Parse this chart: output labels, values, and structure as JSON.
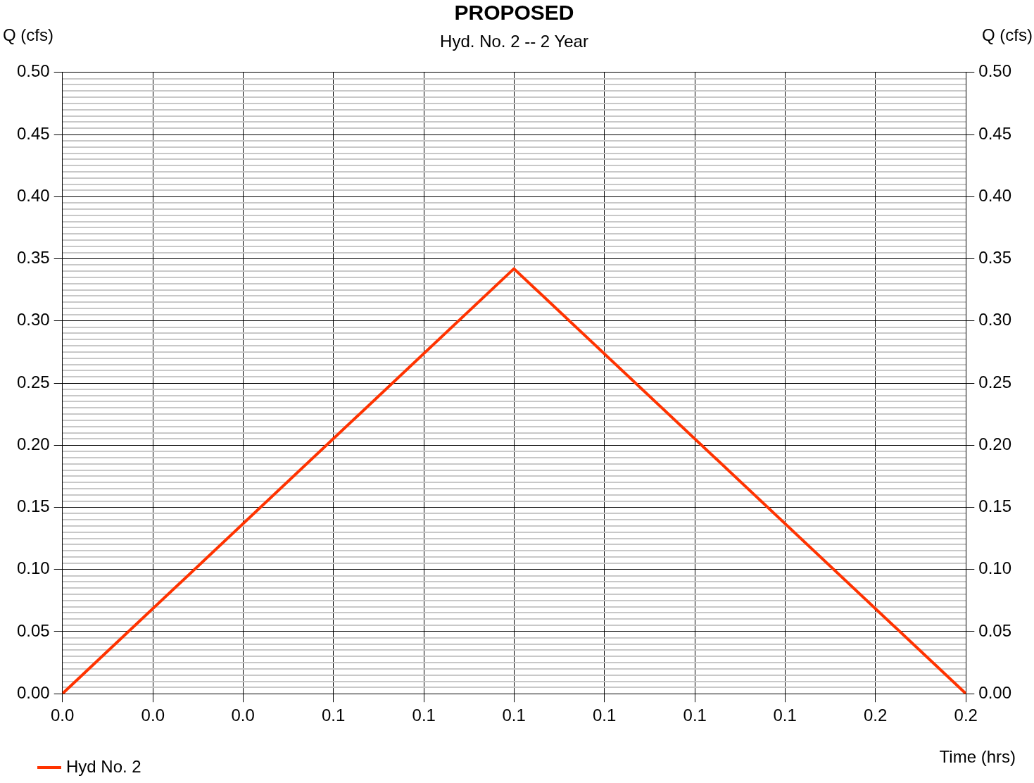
{
  "chart_data": {
    "type": "line",
    "title": "PROPOSED",
    "subtitle": "Hyd. No. 2 -- 2 Year",
    "xlabel": "Time (hrs)",
    "ylabel": "Q (cfs)",
    "y2label": "Q (cfs)",
    "x": [
      0,
      0.0833,
      0.1667
    ],
    "series": [
      {
        "name": "Hyd No. 2",
        "color": "#ff3300",
        "values": [
          0,
          0.342,
          0
        ]
      }
    ],
    "xlim": [
      0,
      0.1667
    ],
    "xticks": [
      {
        "value": 0,
        "label": "0.0"
      },
      {
        "value": 0.0167,
        "label": "0.0"
      },
      {
        "value": 0.0333,
        "label": "0.0"
      },
      {
        "value": 0.05,
        "label": "0.1"
      },
      {
        "value": 0.0667,
        "label": "0.1"
      },
      {
        "value": 0.0833,
        "label": "0.1"
      },
      {
        "value": 0.1,
        "label": "0.1"
      },
      {
        "value": 0.1167,
        "label": "0.1"
      },
      {
        "value": 0.1333,
        "label": "0.1"
      },
      {
        "value": 0.15,
        "label": "0.2"
      },
      {
        "value": 0.1667,
        "label": "0.2"
      }
    ],
    "ylim": [
      0,
      0.5
    ],
    "yticks": [
      {
        "value": 0,
        "label": "0.00"
      },
      {
        "value": 0.05,
        "label": "0.05"
      },
      {
        "value": 0.1,
        "label": "0.10"
      },
      {
        "value": 0.15,
        "label": "0.15"
      },
      {
        "value": 0.2,
        "label": "0.20"
      },
      {
        "value": 0.25,
        "label": "0.25"
      },
      {
        "value": 0.3,
        "label": "0.30"
      },
      {
        "value": 0.35,
        "label": "0.35"
      },
      {
        "value": 0.4,
        "label": "0.40"
      },
      {
        "value": 0.45,
        "label": "0.45"
      },
      {
        "value": 0.5,
        "label": "0.50"
      },
      {
        "value": 0.005,
        "label": null
      },
      {
        "value": 0.01,
        "label": null
      },
      {
        "value": 0.015,
        "label": null
      },
      {
        "value": 0.02,
        "label": null
      },
      {
        "value": 0.025,
        "label": null
      },
      {
        "value": 0.03,
        "label": null
      },
      {
        "value": 0.035,
        "label": null
      },
      {
        "value": 0.04,
        "label": null
      },
      {
        "value": 0.045,
        "label": null
      },
      {
        "value": 0.055,
        "label": null
      },
      {
        "value": 0.06,
        "label": null
      },
      {
        "value": 0.065,
        "label": null
      },
      {
        "value": 0.07,
        "label": null
      },
      {
        "value": 0.075,
        "label": null
      },
      {
        "value": 0.08,
        "label": null
      },
      {
        "value": 0.085,
        "label": null
      },
      {
        "value": 0.09,
        "label": null
      },
      {
        "value": 0.095,
        "label": null
      },
      {
        "value": 0.105,
        "label": null
      },
      {
        "value": 0.11,
        "label": null
      },
      {
        "value": 0.115,
        "label": null
      },
      {
        "value": 0.12,
        "label": null
      },
      {
        "value": 0.125,
        "label": null
      },
      {
        "value": 0.13,
        "label": null
      },
      {
        "value": 0.135,
        "label": null
      },
      {
        "value": 0.14,
        "label": null
      },
      {
        "value": 0.145,
        "label": null
      },
      {
        "value": 0.155,
        "label": null
      },
      {
        "value": 0.16,
        "label": null
      },
      {
        "value": 0.165,
        "label": null
      },
      {
        "value": 0.17,
        "label": null
      },
      {
        "value": 0.175,
        "label": null
      },
      {
        "value": 0.18,
        "label": null
      },
      {
        "value": 0.185,
        "label": null
      },
      {
        "value": 0.19,
        "label": null
      },
      {
        "value": 0.195,
        "label": null
      },
      {
        "value": 0.205,
        "label": null
      },
      {
        "value": 0.21,
        "label": null
      },
      {
        "value": 0.215,
        "label": null
      },
      {
        "value": 0.22,
        "label": null
      },
      {
        "value": 0.225,
        "label": null
      },
      {
        "value": 0.23,
        "label": null
      },
      {
        "value": 0.235,
        "label": null
      },
      {
        "value": 0.24,
        "label": null
      },
      {
        "value": 0.245,
        "label": null
      },
      {
        "value": 0.255,
        "label": null
      },
      {
        "value": 0.26,
        "label": null
      },
      {
        "value": 0.265,
        "label": null
      },
      {
        "value": 0.27,
        "label": null
      },
      {
        "value": 0.275,
        "label": null
      },
      {
        "value": 0.28,
        "label": null
      },
      {
        "value": 0.285,
        "label": null
      },
      {
        "value": 0.29,
        "label": null
      },
      {
        "value": 0.295,
        "label": null
      },
      {
        "value": 0.305,
        "label": null
      },
      {
        "value": 0.31,
        "label": null
      },
      {
        "value": 0.315,
        "label": null
      },
      {
        "value": 0.32,
        "label": null
      },
      {
        "value": 0.325,
        "label": null
      },
      {
        "value": 0.33,
        "label": null
      },
      {
        "value": 0.335,
        "label": null
      },
      {
        "value": 0.34,
        "label": null
      },
      {
        "value": 0.345,
        "label": null
      },
      {
        "value": 0.355,
        "label": null
      },
      {
        "value": 0.36,
        "label": null
      },
      {
        "value": 0.365,
        "label": null
      },
      {
        "value": 0.37,
        "label": null
      },
      {
        "value": 0.375,
        "label": null
      },
      {
        "value": 0.38,
        "label": null
      },
      {
        "value": 0.385,
        "label": null
      },
      {
        "value": 0.39,
        "label": null
      },
      {
        "value": 0.395,
        "label": null
      },
      {
        "value": 0.405,
        "label": null
      },
      {
        "value": 0.41,
        "label": null
      },
      {
        "value": 0.415,
        "label": null
      },
      {
        "value": 0.42,
        "label": null
      },
      {
        "value": 0.425,
        "label": null
      },
      {
        "value": 0.43,
        "label": null
      },
      {
        "value": 0.435,
        "label": null
      },
      {
        "value": 0.44,
        "label": null
      },
      {
        "value": 0.445,
        "label": null
      },
      {
        "value": 0.455,
        "label": null
      },
      {
        "value": 0.46,
        "label": null
      },
      {
        "value": 0.465,
        "label": null
      },
      {
        "value": 0.47,
        "label": null
      },
      {
        "value": 0.475,
        "label": null
      },
      {
        "value": 0.48,
        "label": null
      },
      {
        "value": 0.485,
        "label": null
      },
      {
        "value": 0.49,
        "label": null
      },
      {
        "value": 0.495,
        "label": null
      }
    ],
    "y2lim": [
      0,
      0.5
    ],
    "y2ticks": [
      {
        "value": 0,
        "label": "0.00"
      },
      {
        "value": 0.05,
        "label": "0.05"
      },
      {
        "value": 0.1,
        "label": "0.10"
      },
      {
        "value": 0.15,
        "label": "0.15"
      },
      {
        "value": 0.2,
        "label": "0.20"
      },
      {
        "value": 0.25,
        "label": "0.25"
      },
      {
        "value": 0.3,
        "label": "0.30"
      },
      {
        "value": 0.35,
        "label": "0.35"
      },
      {
        "value": 0.4,
        "label": "0.40"
      },
      {
        "value": 0.45,
        "label": "0.45"
      },
      {
        "value": 0.5,
        "label": "0.50"
      }
    ],
    "grid": true,
    "legend": "bottom left",
    "marker": "none",
    "line_style": "solid"
  }
}
